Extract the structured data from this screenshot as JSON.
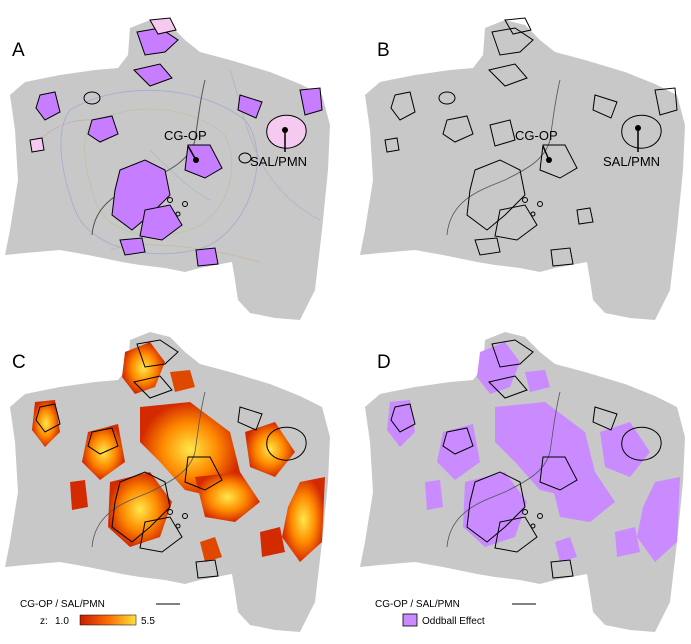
{
  "panels": [
    {
      "letter": "A",
      "labels": [
        "CG-OP",
        "SAL/PMN"
      ]
    },
    {
      "letter": "B",
      "labels": [
        "CG-OP",
        "SAL/PMN"
      ]
    },
    {
      "letter": "C"
    },
    {
      "letter": "D"
    }
  ],
  "legend_c": {
    "line_label": "CG-OP / SAL/PMN",
    "scale_label": "z:",
    "scale_min": "1.0",
    "scale_max": "5.5",
    "colors": [
      "#c81e00",
      "#ff6a00",
      "#ffe23a"
    ]
  },
  "legend_d": {
    "line_label": "CG-OP / SAL/PMN",
    "swatch_label": "Oddball Effect",
    "swatch_color": "#c98bff"
  },
  "colors": {
    "surface": "#c8c8c8",
    "network_fill_a": "#c77dff",
    "network_fill_light": "#f6c9f0",
    "outline": "#000000",
    "oddball": "#c98bff",
    "hot_low": "#d42a00",
    "hot_mid": "#ff8a00",
    "hot_high": "#ffe84a"
  }
}
